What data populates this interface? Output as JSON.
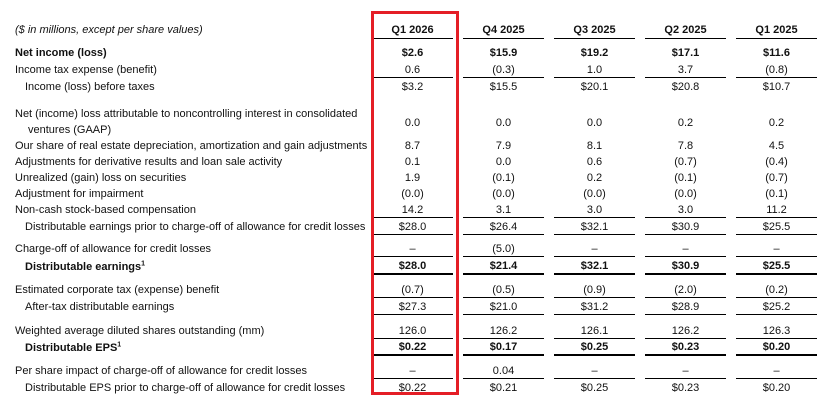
{
  "header": {
    "units_note": "($ in millions, except per share values)",
    "columns": [
      "Q1 2026",
      "Q4 2025",
      "Q3 2025",
      "Q2 2025",
      "Q1 2025"
    ]
  },
  "rows": [
    {
      "label": "Net income (loss)",
      "values": [
        "$2.6",
        "$15.9",
        "$19.2",
        "$17.1",
        "$11.6"
      ]
    },
    {
      "label": "Income tax expense (benefit)",
      "values": [
        "0.6",
        "(0.3)",
        "1.0",
        "3.7",
        "(0.8)"
      ]
    },
    {
      "label": "Income (loss) before taxes",
      "values": [
        "$3.2",
        "$15.5",
        "$20.1",
        "$20.8",
        "$10.7"
      ]
    },
    {
      "label_line1": "Net (income) loss attributable to noncontrolling interest in consolidated",
      "label_line2": "ventures (GAAP)",
      "values": [
        "0.0",
        "0.0",
        "0.0",
        "0.2",
        "0.2"
      ]
    },
    {
      "label": "Our share of real estate depreciation, amortization and gain adjustments",
      "values": [
        "8.7",
        "7.9",
        "8.1",
        "7.8",
        "4.5"
      ]
    },
    {
      "label": "Adjustments for derivative results and loan sale activity",
      "values": [
        "0.1",
        "0.0",
        "0.6",
        "(0.7)",
        "(0.4)"
      ]
    },
    {
      "label": "Unrealized (gain) loss on securities",
      "values": [
        "1.9",
        "(0.1)",
        "0.2",
        "(0.1)",
        "(0.7)"
      ]
    },
    {
      "label": "Adjustment for impairment",
      "values": [
        "(0.0)",
        "(0.0)",
        "(0.0)",
        "(0.0)",
        "(0.1)"
      ]
    },
    {
      "label": "Non-cash stock-based compensation",
      "values": [
        "14.2",
        "3.1",
        "3.0",
        "3.0",
        "11.2"
      ]
    },
    {
      "label": "Distributable earnings prior to charge-off of allowance for credit losses",
      "values": [
        "$28.0",
        "$26.4",
        "$32.1",
        "$30.9",
        "$25.5"
      ]
    },
    {
      "label": "Charge-off of allowance for credit losses",
      "values": [
        "–",
        "(5.0)",
        "–",
        "–",
        "–"
      ]
    },
    {
      "label": "Distributable earnings",
      "sup": "1",
      "values": [
        "$28.0",
        "$21.4",
        "$32.1",
        "$30.9",
        "$25.5"
      ]
    },
    {
      "label": "Estimated corporate tax (expense) benefit",
      "values": [
        "(0.7)",
        "(0.5)",
        "(0.9)",
        "(2.0)",
        "(0.2)"
      ]
    },
    {
      "label": "After-tax distributable earnings",
      "values": [
        "$27.3",
        "$21.0",
        "$31.2",
        "$28.9",
        "$25.2"
      ]
    },
    {
      "label": "Weighted average diluted shares outstanding (mm)",
      "values": [
        "126.0",
        "126.2",
        "126.1",
        "126.2",
        "126.3"
      ]
    },
    {
      "label": "Distributable EPS",
      "sup": "1",
      "values": [
        "$0.22",
        "$0.17",
        "$0.25",
        "$0.23",
        "$0.20"
      ]
    },
    {
      "label": "Per share impact of charge-off of allowance for credit losses",
      "values": [
        "–",
        "0.04",
        "–",
        "–",
        "–"
      ]
    },
    {
      "label": "Distributable EPS prior to charge-off of allowance for credit losses",
      "values": [
        "$0.22",
        "$0.21",
        "$0.25",
        "$0.23",
        "$0.20"
      ]
    }
  ],
  "colors": {
    "highlight": "#e41e26"
  }
}
